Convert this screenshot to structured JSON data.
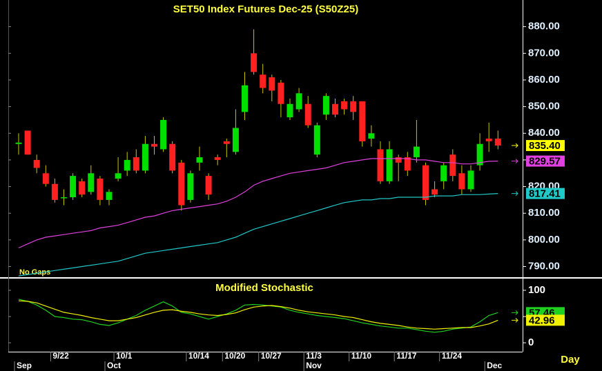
{
  "chart_data": [
    {
      "type": "candlestick",
      "title": "SET50 Index Futures Dec-25 (S50Z25)",
      "annotation": "No Gaps",
      "categories": [
        null,
        null,
        null,
        null,
        "9/22",
        null,
        null,
        null,
        null,
        null,
        null,
        "10/1",
        null,
        null,
        null,
        null,
        null,
        null,
        null,
        "10/14",
        null,
        null,
        null,
        "10/20",
        null,
        null,
        null,
        "10/27",
        null,
        null,
        null,
        null,
        "11/3",
        null,
        null,
        null,
        null,
        "11/10",
        null,
        null,
        null,
        null,
        "11/17",
        null,
        null,
        null,
        null,
        "11/24",
        null,
        null,
        null,
        null,
        null,
        null
      ],
      "months": [
        "Sep",
        null,
        null,
        null,
        null,
        null,
        null,
        null,
        null,
        null,
        "Oct",
        null,
        null,
        null,
        null,
        null,
        null,
        null,
        null,
        null,
        null,
        null,
        null,
        null,
        null,
        null,
        null,
        null,
        null,
        null,
        null,
        null,
        "Nov",
        null,
        null,
        null,
        null,
        null,
        null,
        null,
        null,
        null,
        null,
        null,
        null,
        null,
        null,
        null,
        null,
        null,
        null,
        null,
        "Dec",
        null
      ],
      "open": [
        836,
        841,
        830,
        825,
        821,
        816,
        816,
        822,
        818,
        823,
        815,
        823,
        826,
        831,
        826,
        836,
        834,
        836,
        829,
        815,
        829,
        824,
        831,
        837,
        833,
        848,
        870,
        862,
        861,
        859,
        846,
        849,
        851,
        832,
        847,
        851,
        852,
        852,
        852,
        838,
        834,
        822,
        831,
        831,
        831,
        828,
        819,
        822,
        832,
        825,
        819,
        828,
        838,
        838
      ],
      "high": [
        840,
        841,
        832,
        828,
        823,
        819,
        825,
        823,
        828,
        824,
        819,
        831,
        833,
        834,
        839,
        839,
        846,
        837,
        830,
        826,
        835,
        825,
        832,
        838,
        849,
        863,
        879,
        866,
        862,
        860,
        853,
        857,
        854,
        844,
        855,
        853,
        853,
        854,
        852,
        843,
        837,
        837,
        832,
        833,
        845,
        829,
        822,
        829,
        834,
        828,
        828,
        840,
        844,
        841
      ],
      "low": [
        832,
        832,
        825,
        820,
        814,
        813,
        815,
        816,
        817,
        813,
        813,
        822,
        824,
        825,
        825,
        832,
        833,
        825,
        811,
        814,
        826,
        815,
        828,
        831,
        832,
        845,
        862,
        855,
        852,
        846,
        845,
        848,
        842,
        831,
        845,
        846,
        847,
        845,
        835,
        835,
        821,
        821,
        822,
        824,
        829,
        813,
        816,
        819,
        822,
        817,
        818,
        826,
        833,
        834
      ],
      "close": [
        836.5,
        832,
        827,
        821,
        815,
        816,
        824,
        817,
        825,
        815,
        818,
        825,
        830,
        826,
        836,
        835,
        845,
        826,
        813,
        825,
        831,
        817,
        830,
        836,
        842,
        858,
        863,
        857,
        856,
        851,
        851,
        855,
        843,
        843,
        854,
        847,
        849,
        848,
        837,
        840,
        822,
        834,
        829,
        826,
        835,
        815,
        817,
        828,
        824,
        819,
        826,
        836,
        837,
        835.4
      ],
      "close_labels": [
        null,
        null,
        null,
        null,
        null,
        null,
        null,
        null,
        null,
        null,
        null,
        null,
        null,
        null,
        null,
        null,
        null,
        null,
        null,
        null,
        null,
        null,
        null,
        null,
        null,
        null,
        null,
        null,
        null,
        null,
        null,
        null,
        null,
        null,
        null,
        null,
        null,
        null,
        null,
        null,
        null,
        null,
        null,
        null,
        null,
        null,
        null,
        null,
        null,
        null,
        null,
        null,
        null,
        "835.40"
      ],
      "up_color": "#00e000",
      "down_color": "#ff2020",
      "wick_color": "#c8c800",
      "label_color": "#ffff00",
      "series": [
        {
          "color": "#e040e0",
          "values": [
            797,
            798.5,
            800,
            801,
            801.5,
            802,
            802.5,
            803,
            803.5,
            804.5,
            805,
            805.5,
            806.5,
            807.5,
            808.5,
            809,
            810,
            811,
            811.5,
            812,
            812.5,
            813,
            813.5,
            814.5,
            816,
            818,
            820.5,
            822,
            823,
            824,
            825,
            825.5,
            826,
            826.5,
            827,
            828,
            829,
            829.5,
            830,
            830.5,
            830.5,
            830.5,
            830.5,
            830.5,
            830,
            830,
            829.5,
            829,
            829,
            828.5,
            828.5,
            829,
            829.5,
            829.57
          ],
          "value_labels": [
            null,
            null,
            null,
            null,
            null,
            null,
            null,
            null,
            null,
            null,
            null,
            null,
            null,
            null,
            null,
            null,
            null,
            null,
            null,
            null,
            null,
            null,
            null,
            null,
            null,
            null,
            null,
            null,
            null,
            null,
            null,
            null,
            null,
            null,
            null,
            null,
            null,
            null,
            null,
            null,
            null,
            null,
            null,
            null,
            null,
            null,
            null,
            null,
            null,
            null,
            null,
            null,
            null,
            "829.57"
          ]
        },
        {
          "color": "#20c8c8",
          "values": [
            786.5,
            787,
            787.5,
            788,
            788.5,
            789,
            789.5,
            790,
            790.5,
            791,
            791.5,
            792,
            793,
            794,
            795,
            795.5,
            796,
            796.5,
            797,
            797.5,
            798,
            798.5,
            799,
            800,
            801,
            802.5,
            804,
            805,
            806,
            807,
            808,
            809,
            810,
            811,
            812,
            813,
            814,
            814.5,
            815,
            815,
            815.5,
            815.5,
            816,
            816,
            816,
            816,
            816.5,
            816.5,
            816.5,
            817,
            817,
            817,
            817.2,
            817.41
          ],
          "value_labels": [
            null,
            null,
            null,
            null,
            null,
            null,
            null,
            null,
            null,
            null,
            null,
            null,
            null,
            null,
            null,
            null,
            null,
            null,
            null,
            null,
            null,
            null,
            null,
            null,
            null,
            null,
            null,
            null,
            null,
            null,
            null,
            null,
            null,
            null,
            null,
            null,
            null,
            null,
            null,
            null,
            null,
            null,
            null,
            null,
            null,
            null,
            null,
            null,
            null,
            null,
            null,
            null,
            null,
            "817.41"
          ]
        }
      ],
      "ylim": [
        786,
        890
      ],
      "yticks": [
        {
          "value": 790,
          "label": "790.00"
        },
        {
          "value": 800,
          "label": "800.00"
        },
        {
          "value": 810,
          "label": "810.00"
        },
        {
          "value": 820,
          "label": "820.00"
        },
        {
          "value": 830,
          "label": "830.00"
        },
        {
          "value": 840,
          "label": "840.00"
        },
        {
          "value": 850,
          "label": "850.00"
        },
        {
          "value": 860,
          "label": "860.00"
        },
        {
          "value": 870,
          "label": "870.00"
        },
        {
          "value": 880,
          "label": "880.00"
        }
      ]
    },
    {
      "type": "line",
      "title": "Modified Stochastic",
      "x_label": "Day",
      "series": [
        {
          "color": "#20d020",
          "values": [
            83,
            79,
            72,
            62,
            50,
            48,
            45,
            44,
            40,
            35,
            33,
            38,
            45,
            52,
            62,
            70,
            78,
            70,
            58,
            55,
            50,
            45,
            50,
            55,
            62,
            72,
            73,
            72,
            70,
            68,
            62,
            58,
            55,
            52,
            50,
            48,
            46,
            42,
            38,
            35,
            32,
            30,
            28,
            28,
            25,
            22,
            20,
            22,
            26,
            28,
            30,
            40,
            52,
            57.46
          ],
          "value_labels": [
            null,
            null,
            null,
            null,
            null,
            null,
            null,
            null,
            null,
            null,
            null,
            null,
            null,
            null,
            null,
            null,
            null,
            null,
            null,
            null,
            null,
            null,
            null,
            null,
            null,
            null,
            null,
            null,
            null,
            null,
            null,
            null,
            null,
            null,
            null,
            null,
            null,
            null,
            null,
            null,
            null,
            null,
            null,
            null,
            null,
            null,
            null,
            null,
            null,
            null,
            null,
            null,
            null,
            "57.46"
          ]
        },
        {
          "color": "#f0f000",
          "values": [
            80,
            79,
            76,
            70,
            64,
            58,
            55,
            52,
            48,
            45,
            42,
            42,
            45,
            48,
            53,
            58,
            62,
            63,
            60,
            58,
            55,
            53,
            52,
            54,
            57,
            63,
            68,
            70,
            71,
            69,
            66,
            62,
            59,
            57,
            55,
            53,
            50,
            48,
            44,
            40,
            37,
            35,
            33,
            30,
            28,
            27,
            26,
            27,
            28,
            29,
            29,
            32,
            36,
            42.96
          ],
          "value_labels": [
            null,
            null,
            null,
            null,
            null,
            null,
            null,
            null,
            null,
            null,
            null,
            null,
            null,
            null,
            null,
            null,
            null,
            null,
            null,
            null,
            null,
            null,
            null,
            null,
            null,
            null,
            null,
            null,
            null,
            null,
            null,
            null,
            null,
            null,
            null,
            null,
            null,
            null,
            null,
            null,
            null,
            null,
            null,
            null,
            null,
            null,
            null,
            null,
            null,
            null,
            null,
            null,
            null,
            "42.96"
          ]
        }
      ],
      "ylim": [
        -17,
        121
      ],
      "yticks": [
        0,
        50,
        100
      ]
    }
  ]
}
